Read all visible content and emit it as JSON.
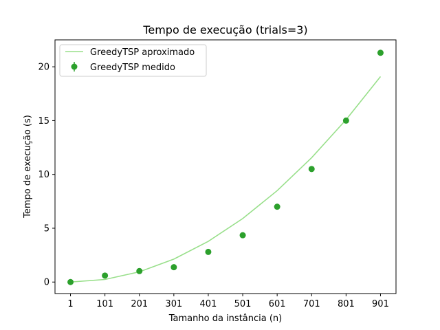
{
  "chart_data": {
    "type": "line",
    "title": "Tempo de execução (trials=3)",
    "xlabel": "Tamanho da instância (n)",
    "ylabel": "Tempo de execução (s)",
    "x": [
      1,
      101,
      201,
      301,
      401,
      501,
      601,
      701,
      801,
      901
    ],
    "xticks": [
      "1",
      "101",
      "201",
      "301",
      "401",
      "501",
      "601",
      "701",
      "801",
      "901"
    ],
    "yticks": [
      0,
      5,
      10,
      15,
      20
    ],
    "xlim": [
      -44,
      946
    ],
    "ylim": [
      -1.07,
      22.5
    ],
    "grid": false,
    "legend_position": "top-left",
    "series": [
      {
        "name": "GreedyTSP aproximado",
        "kind": "line",
        "color": "#98df8a",
        "values": [
          0.0,
          0.24,
          0.95,
          2.13,
          3.78,
          5.9,
          8.49,
          11.55,
          15.08,
          19.09
        ]
      },
      {
        "name": "GreedyTSP medido",
        "kind": "errorbar",
        "color": "#2ca02c",
        "values": [
          0.0,
          0.6,
          1.02,
          1.38,
          2.8,
          4.35,
          7.0,
          10.5,
          15.0,
          21.3
        ],
        "errors": [
          0.02,
          0.04,
          0.04,
          0.06,
          0.08,
          0.08,
          0.1,
          0.15,
          0.12,
          0.22
        ]
      }
    ]
  }
}
